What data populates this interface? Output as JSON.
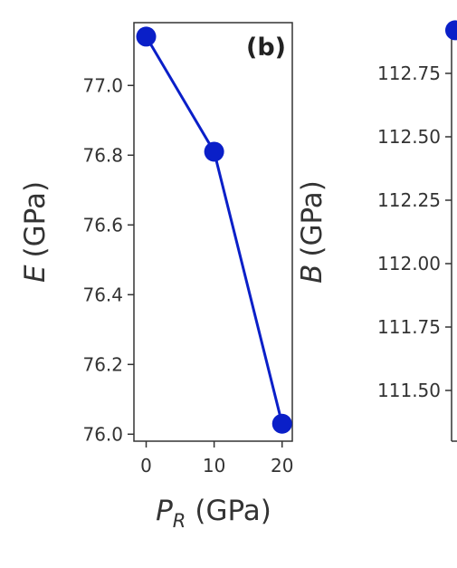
{
  "chart_data": [
    {
      "type": "line",
      "panel_label": "(b)",
      "xlabel_symbol": "P",
      "xlabel_subscript": "R",
      "xlabel_unit": "(GPa)",
      "ylabel_symbol": "E",
      "ylabel_unit": "(GPa)",
      "x": [
        0,
        10,
        20
      ],
      "xticks": [
        "0",
        "10",
        "20"
      ],
      "yticks": [
        "76.0",
        "76.2",
        "76.4",
        "76.6",
        "76.8",
        "77.0"
      ],
      "series": [
        {
          "values": [
            77.14,
            76.81,
            76.03
          ],
          "color": "#0a1fc8"
        }
      ],
      "xlim": [
        -1.8,
        21.5
      ],
      "ylim": [
        75.98,
        77.18
      ],
      "grid": false
    },
    {
      "type": "line",
      "partial": true,
      "xlabel_symbol": "",
      "ylabel_symbol": "B",
      "ylabel_unit": "(GPa)",
      "yticks": [
        "111.50",
        "111.75",
        "112.00",
        "112.25",
        "112.50",
        "112.75"
      ],
      "series": [
        {
          "values": [
            112.92
          ],
          "color": "#0a1fc8"
        }
      ],
      "ylim": [
        111.3,
        112.95
      ],
      "grid": false
    }
  ]
}
